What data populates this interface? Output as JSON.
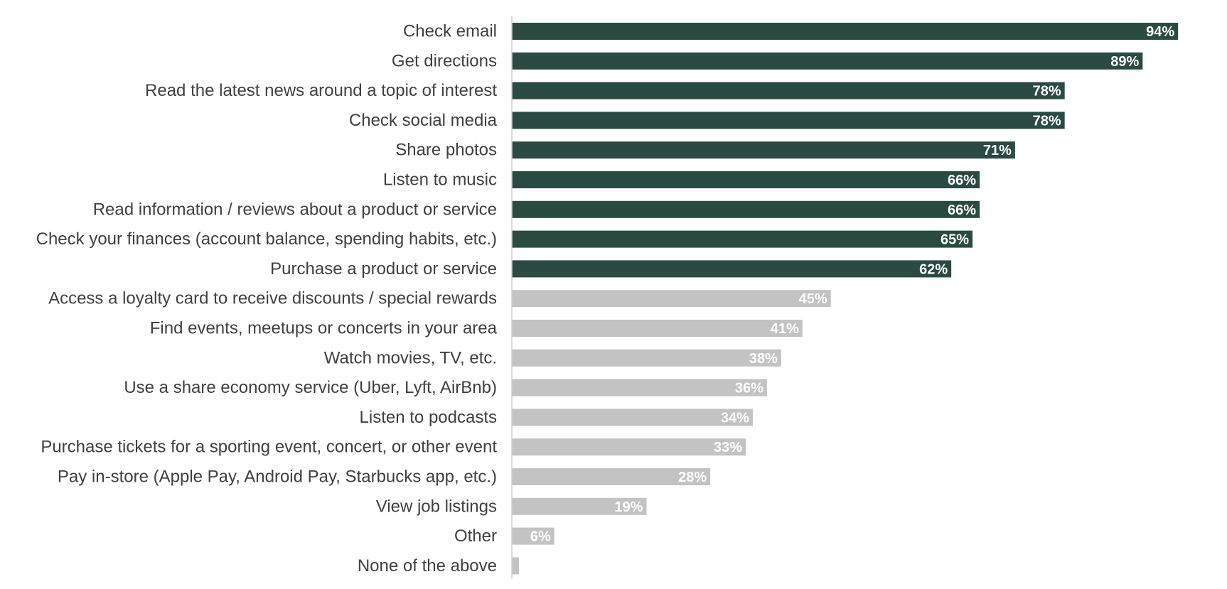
{
  "chart_data": {
    "type": "bar",
    "orientation": "horizontal",
    "categories": [
      "Check email",
      "Get directions",
      "Read the latest news around a topic of interest",
      "Check social media",
      "Share photos",
      "Listen to music",
      "Read information / reviews about a product or service",
      "Check your finances (account balance, spending habits, etc.)",
      "Purchase a product or service",
      "Access a loyalty card to receive discounts / special rewards",
      "Find events, meetups or concerts in your area",
      "Watch movies, TV, etc.",
      "Use a share economy service (Uber, Lyft, AirBnb)",
      "Listen to podcasts",
      "Purchase tickets for a sporting event, concert, or other event",
      "Pay in-store (Apple Pay, Android Pay, Starbucks app, etc.)",
      "View job listings",
      "Other",
      "None of the above"
    ],
    "values": [
      94,
      89,
      78,
      78,
      71,
      66,
      66,
      65,
      62,
      45,
      41,
      38,
      36,
      34,
      33,
      28,
      19,
      6,
      1
    ],
    "data_labels": [
      "94%",
      "89%",
      "78%",
      "78%",
      "71%",
      "66%",
      "66%",
      "65%",
      "62%",
      "45%",
      "41%",
      "38%",
      "36%",
      "34%",
      "33%",
      "28%",
      "19%",
      "6%",
      ""
    ],
    "highlighted_count": 9,
    "colors": {
      "highlight": "#2b4a42",
      "default": "#c3c3c3",
      "axis": "#d0d0d0"
    },
    "title": "",
    "xlabel": "",
    "ylabel": "",
    "xlim": [
      0,
      100
    ],
    "grid": false,
    "legend": "none"
  }
}
